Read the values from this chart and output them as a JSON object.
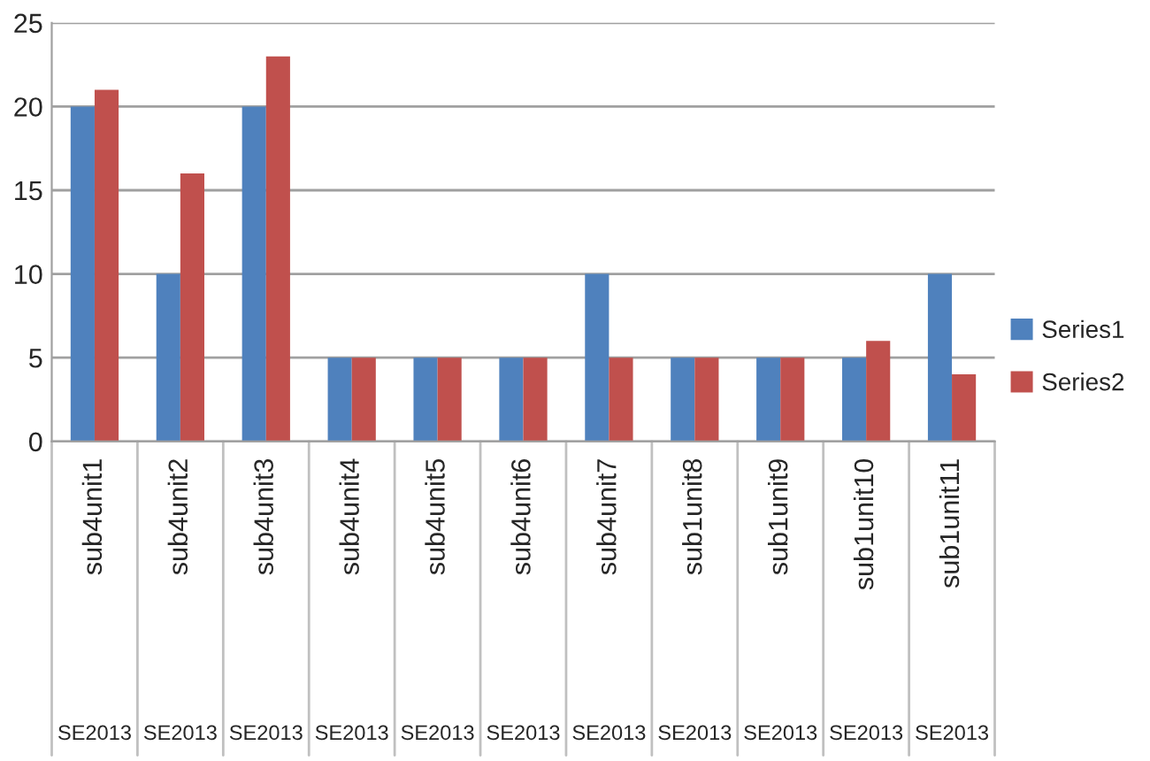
{
  "chart_data": {
    "type": "bar",
    "categories": [
      "sub4unit1",
      "sub4unit2",
      "sub4unit3",
      "sub4unit4",
      "sub4unit5",
      "sub4unit6",
      "sub4unit7",
      "sub1unit8",
      "sub1unit9",
      "sub1unit10",
      "sub1unit11"
    ],
    "series": [
      {
        "name": "Series1",
        "color": "#4f81bd",
        "values": [
          20,
          10,
          20,
          5,
          5,
          5,
          10,
          5,
          5,
          5,
          10
        ]
      },
      {
        "name": "Series2",
        "color": "#c0504d",
        "values": [
          21,
          16,
          23,
          5,
          5,
          5,
          5,
          5,
          5,
          6,
          4
        ]
      }
    ],
    "annotations": [
      "SE2013",
      "SE2013",
      "SE2013",
      "SE2013",
      "SE2013",
      "SE2013",
      "SE2013",
      "SE2013",
      "SE2013",
      "SE2013",
      "SE2013"
    ],
    "ylim": [
      0,
      25
    ],
    "yticks": [
      0,
      5,
      10,
      15,
      20,
      25
    ],
    "grid": "y",
    "legend": "right"
  }
}
